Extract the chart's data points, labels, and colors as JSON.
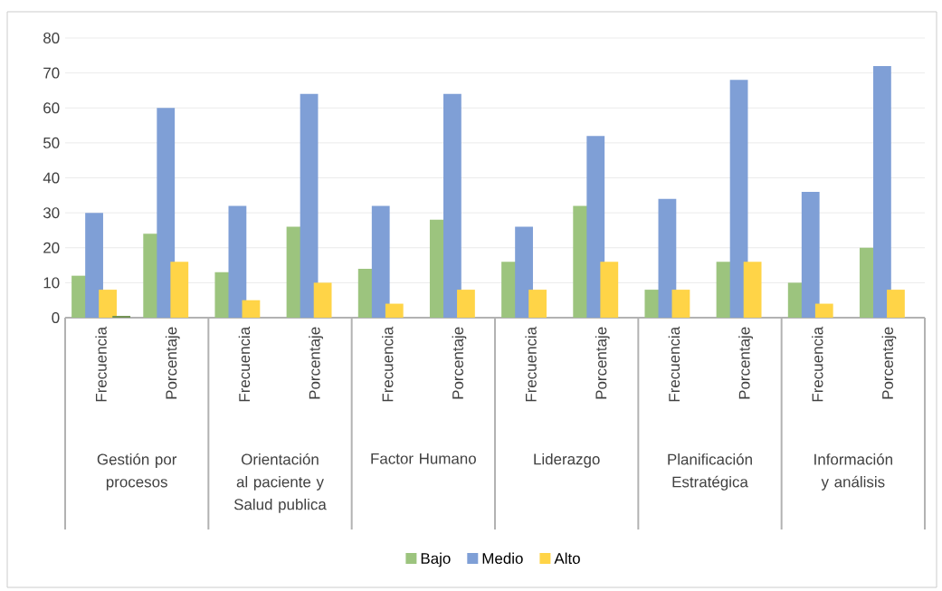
{
  "chart_data": {
    "type": "bar",
    "categories": [
      "Frecuencia",
      "Porcentaje",
      "Frecuencia",
      "Porcentaje",
      "Frecuencia",
      "Porcentaje",
      "Frecuencia",
      "Porcentaje",
      "Frecuencia",
      "Porcentaje",
      "Frecuencia",
      "Porcentaje"
    ],
    "annotations": [
      "Gestión por procesos",
      "Orientación al paciente y Salud publica",
      "Factor Humano",
      "Liderazgo",
      "Planificación Estratégica",
      "Información y análisis"
    ],
    "series": [
      {
        "name": "Bajo",
        "color": "#9cc47e",
        "values": [
          12,
          24,
          13,
          26,
          14,
          28,
          16,
          32,
          8,
          16,
          10,
          20
        ]
      },
      {
        "name": "Medio",
        "color": "#7f9fd6",
        "values": [
          30,
          60,
          32,
          64,
          32,
          64,
          26,
          52,
          34,
          68,
          36,
          72
        ]
      },
      {
        "name": "Alto",
        "color": "#ffd447",
        "values": [
          8,
          16,
          5,
          10,
          4,
          8,
          8,
          16,
          8,
          16,
          4,
          8
        ]
      },
      {
        "color": "#6e8f4f",
        "values": [
          0.5,
          null,
          null,
          null,
          null,
          null,
          null,
          null,
          null,
          null,
          null,
          null
        ]
      }
    ],
    "ylim": [
      0,
      80
    ],
    "yticks": [
      0,
      10,
      20,
      30,
      40,
      50,
      60,
      70,
      80
    ],
    "grid": "y",
    "legend": "bottom"
  }
}
